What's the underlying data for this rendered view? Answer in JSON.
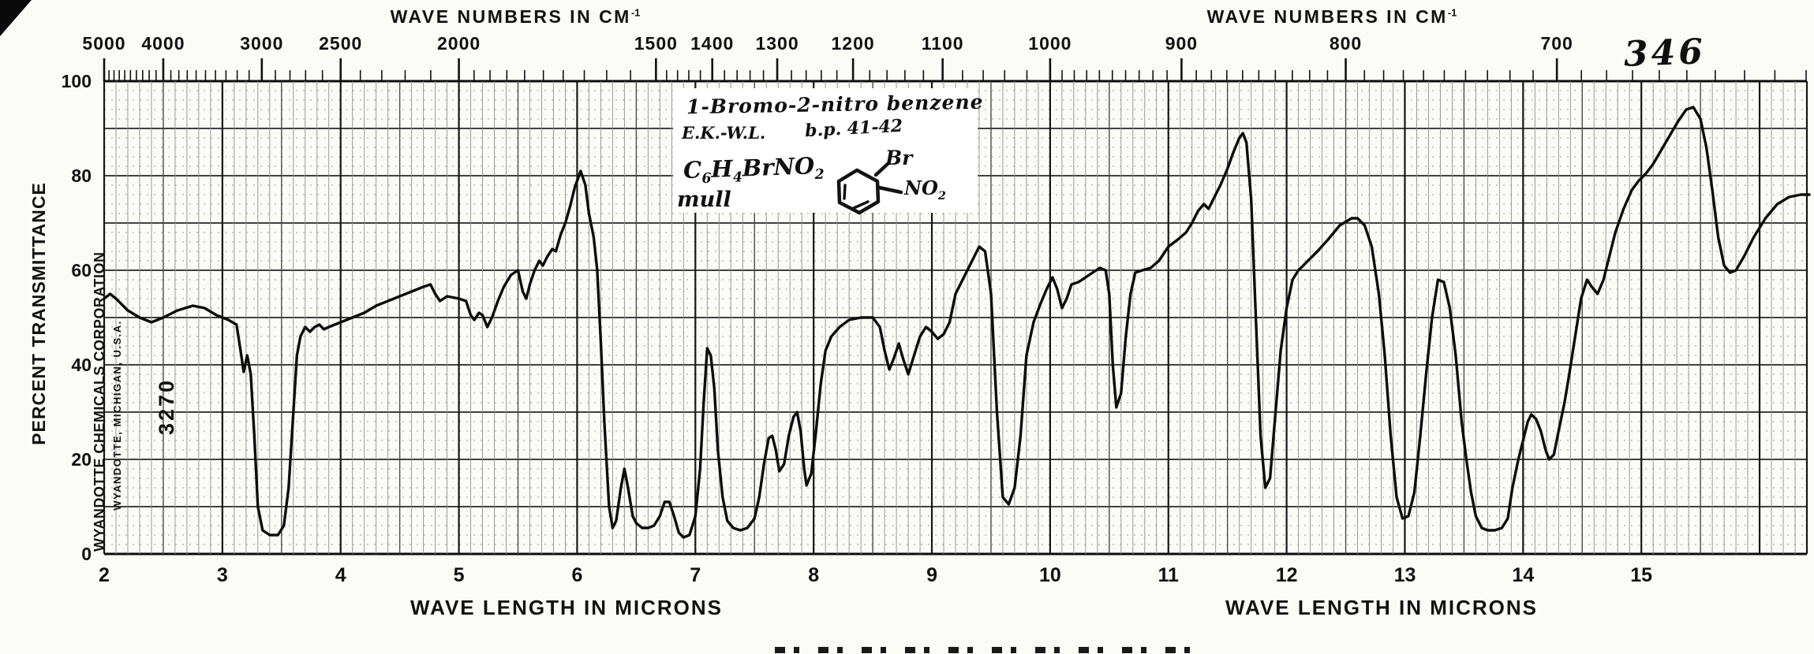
{
  "page": {
    "number": "346"
  },
  "stamp": {
    "company": "WYANDOTTE CHEMICALS CORPORATION",
    "location": "WYANDOTTE, MICHIGAN, U.S.A.",
    "spectrum_number": "3270"
  },
  "annotation": {
    "compound": "1-Bromo-2-nitro benzene",
    "initials": "E.K.-W.L.",
    "boiling_point": "b.p. 41-42",
    "formula_parts": [
      [
        "C",
        "6"
      ],
      [
        "H",
        "4"
      ],
      [
        "Br",
        ""
      ],
      [
        "NO",
        "2"
      ]
    ],
    "phase": "mull",
    "structure": {
      "top_label": "Br",
      "side_label_parts": [
        [
          "NO",
          "2"
        ]
      ]
    }
  },
  "chart_data": {
    "type": "line",
    "title": "Infrared spectrum 346: 1-Bromo-2-nitro benzene (mull)",
    "xlabel": "WAVE LENGTH IN MICRONS",
    "x2label": "WAVE NUMBERS IN CM",
    "x2label_sup": "-1",
    "ylabel": "PERCENT TRANSMITTANCE",
    "x_range": [
      2,
      16.4
    ],
    "y_range": [
      0,
      100
    ],
    "x_minor_step": 0.1,
    "y_minor_step": 2,
    "y_major_step": 10,
    "grid": true,
    "x_label_ticks": [
      2,
      3,
      4,
      5,
      6,
      7,
      8,
      9,
      10,
      11,
      12,
      13,
      14,
      15
    ],
    "y_label_ticks": [
      100,
      80,
      60,
      40,
      20,
      0
    ],
    "wavenumber_labels": [
      5000,
      4000,
      3000,
      2500,
      2000,
      1500,
      1400,
      1300,
      1200,
      1100,
      1000,
      900,
      800,
      700
    ],
    "wavenumber_minor_rules": [
      {
        "from": 4900,
        "to": 2000,
        "step": 100
      },
      {
        "from": 2000,
        "to": 1500,
        "step": 50
      },
      {
        "from": 1500,
        "to": 1000,
        "step": 20
      },
      {
        "from": 1000,
        "to": 610,
        "step": 10
      }
    ],
    "series_name": "percent transmittance",
    "points": [
      [
        2.0,
        54
      ],
      [
        2.05,
        55
      ],
      [
        2.1,
        54
      ],
      [
        2.2,
        51.5
      ],
      [
        2.3,
        50
      ],
      [
        2.4,
        49
      ],
      [
        2.5,
        50
      ],
      [
        2.62,
        51.5
      ],
      [
        2.75,
        52.5
      ],
      [
        2.85,
        52
      ],
      [
        2.95,
        50.5
      ],
      [
        3.05,
        49.5
      ],
      [
        3.12,
        48.5
      ],
      [
        3.16,
        42
      ],
      [
        3.18,
        38.5
      ],
      [
        3.21,
        42
      ],
      [
        3.24,
        38
      ],
      [
        3.27,
        25
      ],
      [
        3.3,
        10
      ],
      [
        3.34,
        5
      ],
      [
        3.4,
        4
      ],
      [
        3.47,
        4
      ],
      [
        3.52,
        6
      ],
      [
        3.56,
        14
      ],
      [
        3.6,
        30
      ],
      [
        3.63,
        42
      ],
      [
        3.66,
        46
      ],
      [
        3.7,
        48
      ],
      [
        3.74,
        47
      ],
      [
        3.78,
        48
      ],
      [
        3.82,
        48.5
      ],
      [
        3.86,
        47.5
      ],
      [
        3.9,
        48
      ],
      [
        4.0,
        49
      ],
      [
        4.1,
        50
      ],
      [
        4.2,
        51
      ],
      [
        4.3,
        52.5
      ],
      [
        4.4,
        53.5
      ],
      [
        4.5,
        54.5
      ],
      [
        4.6,
        55.5
      ],
      [
        4.7,
        56.5
      ],
      [
        4.76,
        57
      ],
      [
        4.8,
        55
      ],
      [
        4.84,
        53.5
      ],
      [
        4.9,
        54.5
      ],
      [
        5.0,
        54
      ],
      [
        5.06,
        53.5
      ],
      [
        5.1,
        50.5
      ],
      [
        5.13,
        49.5
      ],
      [
        5.17,
        51
      ],
      [
        5.2,
        50.5
      ],
      [
        5.24,
        48
      ],
      [
        5.28,
        50
      ],
      [
        5.33,
        53.5
      ],
      [
        5.38,
        56.5
      ],
      [
        5.44,
        59
      ],
      [
        5.5,
        60
      ],
      [
        5.54,
        55.5
      ],
      [
        5.57,
        54
      ],
      [
        5.6,
        57
      ],
      [
        5.64,
        60
      ],
      [
        5.68,
        62
      ],
      [
        5.71,
        61
      ],
      [
        5.75,
        63
      ],
      [
        5.79,
        64.5
      ],
      [
        5.82,
        64
      ],
      [
        5.86,
        67.5
      ],
      [
        5.9,
        70
      ],
      [
        5.94,
        73.5
      ],
      [
        5.98,
        77.5
      ],
      [
        6.03,
        81
      ],
      [
        6.07,
        78
      ],
      [
        6.1,
        72
      ],
      [
        6.14,
        67
      ],
      [
        6.17,
        60
      ],
      [
        6.2,
        45
      ],
      [
        6.23,
        28
      ],
      [
        6.27,
        10
      ],
      [
        6.3,
        5.5
      ],
      [
        6.33,
        7
      ],
      [
        6.37,
        14
      ],
      [
        6.4,
        18
      ],
      [
        6.43,
        14
      ],
      [
        6.47,
        8
      ],
      [
        6.5,
        6.5
      ],
      [
        6.55,
        5.5
      ],
      [
        6.6,
        5.5
      ],
      [
        6.65,
        6
      ],
      [
        6.7,
        8
      ],
      [
        6.74,
        11
      ],
      [
        6.78,
        11
      ],
      [
        6.82,
        8
      ],
      [
        6.86,
        4.5
      ],
      [
        6.9,
        3.5
      ],
      [
        6.95,
        4
      ],
      [
        7.0,
        8
      ],
      [
        7.04,
        18
      ],
      [
        7.07,
        32
      ],
      [
        7.1,
        43.5
      ],
      [
        7.13,
        42
      ],
      [
        7.16,
        35
      ],
      [
        7.19,
        22
      ],
      [
        7.23,
        12
      ],
      [
        7.27,
        7
      ],
      [
        7.32,
        5.5
      ],
      [
        7.38,
        5
      ],
      [
        7.44,
        5.5
      ],
      [
        7.5,
        7.5
      ],
      [
        7.54,
        12
      ],
      [
        7.58,
        19
      ],
      [
        7.62,
        24.5
      ],
      [
        7.65,
        25
      ],
      [
        7.68,
        22
      ],
      [
        7.71,
        17.5
      ],
      [
        7.75,
        19
      ],
      [
        7.79,
        25
      ],
      [
        7.83,
        29
      ],
      [
        7.86,
        30
      ],
      [
        7.89,
        26
      ],
      [
        7.92,
        18
      ],
      [
        7.94,
        14.5
      ],
      [
        7.98,
        17
      ],
      [
        8.02,
        26
      ],
      [
        8.06,
        36
      ],
      [
        8.1,
        43
      ],
      [
        8.15,
        46
      ],
      [
        8.22,
        48
      ],
      [
        8.3,
        49.5
      ],
      [
        8.4,
        50
      ],
      [
        8.5,
        50
      ],
      [
        8.56,
        48
      ],
      [
        8.6,
        43
      ],
      [
        8.64,
        39
      ],
      [
        8.68,
        41.5
      ],
      [
        8.72,
        44.5
      ],
      [
        8.76,
        41
      ],
      [
        8.8,
        38
      ],
      [
        8.85,
        42
      ],
      [
        8.9,
        46
      ],
      [
        8.95,
        48
      ],
      [
        9.0,
        47
      ],
      [
        9.05,
        45.5
      ],
      [
        9.1,
        46.5
      ],
      [
        9.15,
        49
      ],
      [
        9.2,
        55
      ],
      [
        9.26,
        58
      ],
      [
        9.32,
        61
      ],
      [
        9.4,
        65
      ],
      [
        9.45,
        64
      ],
      [
        9.5,
        55
      ],
      [
        9.55,
        30
      ],
      [
        9.6,
        12
      ],
      [
        9.65,
        10.5
      ],
      [
        9.7,
        14
      ],
      [
        9.75,
        25
      ],
      [
        9.8,
        42
      ],
      [
        9.86,
        49
      ],
      [
        9.92,
        53
      ],
      [
        9.97,
        56
      ],
      [
        10.02,
        58.5
      ],
      [
        10.06,
        56
      ],
      [
        10.1,
        52
      ],
      [
        10.14,
        54
      ],
      [
        10.18,
        57
      ],
      [
        10.24,
        57.5
      ],
      [
        10.3,
        58.5
      ],
      [
        10.36,
        59.5
      ],
      [
        10.42,
        60.5
      ],
      [
        10.47,
        60
      ],
      [
        10.5,
        55
      ],
      [
        10.53,
        40
      ],
      [
        10.56,
        31
      ],
      [
        10.6,
        34
      ],
      [
        10.64,
        46
      ],
      [
        10.68,
        55
      ],
      [
        10.72,
        59.5
      ],
      [
        10.78,
        60
      ],
      [
        10.85,
        60.5
      ],
      [
        10.92,
        62
      ],
      [
        11.0,
        65
      ],
      [
        11.08,
        66.5
      ],
      [
        11.15,
        68
      ],
      [
        11.2,
        70
      ],
      [
        11.25,
        72.5
      ],
      [
        11.3,
        74
      ],
      [
        11.34,
        73
      ],
      [
        11.38,
        75
      ],
      [
        11.44,
        78
      ],
      [
        11.5,
        81.5
      ],
      [
        11.55,
        85
      ],
      [
        11.6,
        88
      ],
      [
        11.63,
        89
      ],
      [
        11.66,
        87
      ],
      [
        11.7,
        75
      ],
      [
        11.74,
        50
      ],
      [
        11.78,
        25
      ],
      [
        11.82,
        14
      ],
      [
        11.86,
        16
      ],
      [
        11.9,
        28
      ],
      [
        11.95,
        43
      ],
      [
        12.0,
        52
      ],
      [
        12.05,
        58
      ],
      [
        12.1,
        60
      ],
      [
        12.18,
        62
      ],
      [
        12.26,
        64
      ],
      [
        12.35,
        66.5
      ],
      [
        12.45,
        69.5
      ],
      [
        12.55,
        71
      ],
      [
        12.6,
        71
      ],
      [
        12.66,
        69.5
      ],
      [
        12.72,
        65
      ],
      [
        12.78,
        55
      ],
      [
        12.83,
        42
      ],
      [
        12.88,
        25
      ],
      [
        12.93,
        12
      ],
      [
        12.98,
        7.5
      ],
      [
        13.03,
        8
      ],
      [
        13.08,
        13
      ],
      [
        13.13,
        25
      ],
      [
        13.18,
        38
      ],
      [
        13.23,
        50
      ],
      [
        13.28,
        58
      ],
      [
        13.33,
        57.5
      ],
      [
        13.38,
        52
      ],
      [
        13.43,
        42
      ],
      [
        13.48,
        28
      ],
      [
        13.52,
        20
      ],
      [
        13.56,
        13
      ],
      [
        13.6,
        8
      ],
      [
        13.65,
        5.5
      ],
      [
        13.7,
        5
      ],
      [
        13.76,
        5
      ],
      [
        13.82,
        5.5
      ],
      [
        13.87,
        7.5
      ],
      [
        13.91,
        14
      ],
      [
        13.96,
        20
      ],
      [
        14.0,
        24
      ],
      [
        14.04,
        28
      ],
      [
        14.07,
        29.5
      ],
      [
        14.11,
        28.5
      ],
      [
        14.15,
        26
      ],
      [
        14.19,
        22
      ],
      [
        14.22,
        20
      ],
      [
        14.26,
        21
      ],
      [
        14.3,
        26
      ],
      [
        14.35,
        32
      ],
      [
        14.39,
        38
      ],
      [
        14.44,
        46
      ],
      [
        14.49,
        54
      ],
      [
        14.54,
        58
      ],
      [
        14.58,
        56.5
      ],
      [
        14.63,
        55
      ],
      [
        14.68,
        58
      ],
      [
        14.72,
        62
      ],
      [
        14.78,
        68
      ],
      [
        14.85,
        73
      ],
      [
        14.92,
        77
      ],
      [
        14.98,
        79
      ],
      [
        15.04,
        80.5
      ],
      [
        15.1,
        82.5
      ],
      [
        15.17,
        85.5
      ],
      [
        15.24,
        88.5
      ],
      [
        15.31,
        91.5
      ],
      [
        15.38,
        94
      ],
      [
        15.44,
        94.5
      ],
      [
        15.5,
        92
      ],
      [
        15.55,
        86
      ],
      [
        15.6,
        77
      ],
      [
        15.65,
        67
      ],
      [
        15.7,
        61
      ],
      [
        15.75,
        59.5
      ],
      [
        15.8,
        60
      ],
      [
        15.87,
        63
      ],
      [
        15.95,
        67
      ],
      [
        16.05,
        71
      ],
      [
        16.15,
        74
      ],
      [
        16.25,
        75.5
      ],
      [
        16.35,
        76
      ],
      [
        16.42,
        76
      ]
    ]
  }
}
